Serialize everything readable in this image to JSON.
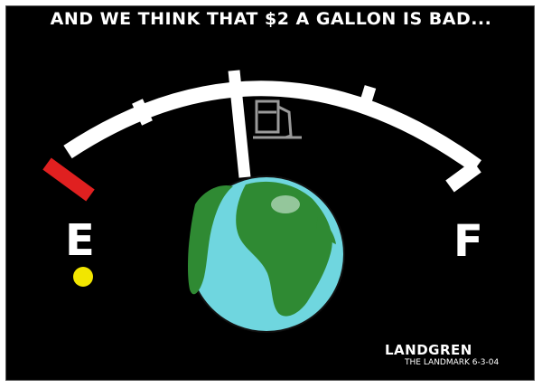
{
  "caption": "AND WE THINK THAT $2 A GALLON IS BAD...",
  "gauge": {
    "empty_label": "E",
    "full_label": "F"
  },
  "signature": {
    "artist": "LANDGREN",
    "publication_date": "THE LANDMARK 6-3-04"
  },
  "colors": {
    "background": "#000000",
    "gauge_arc": "#ffffff",
    "empty_marker": "#e02020",
    "warning_light": "#f2e600",
    "ocean": "#6fd6df",
    "land": "#2f8a33"
  },
  "icons": {
    "gas_pump": "fuel-pump-icon",
    "warning": "low-fuel-light-icon"
  }
}
